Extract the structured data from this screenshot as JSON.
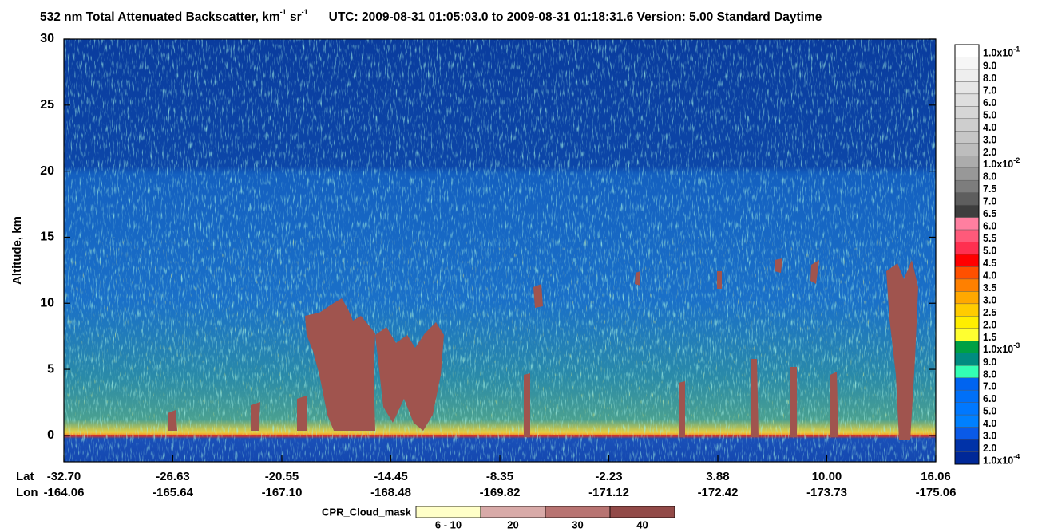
{
  "chart_data": {
    "type": "heatmap",
    "title": {
      "main": "532 nm Total Attenuated Backscatter, km",
      "exp1": "-1",
      "unit2": " sr",
      "exp2": "-1",
      "rest": "UTC:  2009-08-31 01:05:03.0  to  2009-08-31 01:18:31.6    Version: 5.00  Standard  Daytime"
    },
    "y_label": "Altitude, km",
    "ylim": [
      -2,
      30
    ],
    "yticks": [
      0,
      5,
      10,
      15,
      20,
      25,
      30
    ],
    "xtick_rows": [
      {
        "name": "Lat",
        "labels": [
          "-32.70",
          "-26.63",
          "-20.55",
          "-14.45",
          "-8.35",
          "-2.23",
          "3.88",
          "10.00",
          "16.06"
        ]
      },
      {
        "name": "Lon",
        "labels": [
          "-164.06",
          "-165.64",
          "-167.10",
          "-168.48",
          "-169.82",
          "-171.12",
          "-172.42",
          "-173.73",
          "-175.06"
        ]
      }
    ],
    "colorbar": {
      "labels": [
        {
          "text": "1.0x10",
          "sup": "-1"
        },
        "9.0",
        "8.0",
        "7.0",
        "6.0",
        "5.0",
        "4.0",
        "3.0",
        "2.0",
        {
          "text": "1.0x10",
          "sup": "-2"
        },
        "8.0",
        "7.5",
        "7.0",
        "6.5",
        "6.0",
        "5.5",
        "5.0",
        "4.5",
        "4.0",
        "3.5",
        "3.0",
        "2.5",
        "2.0",
        "1.5",
        {
          "text": "1.0x10",
          "sup": "-3"
        },
        "9.0",
        "8.0",
        "7.0",
        "6.0",
        "5.0",
        "4.0",
        "3.0",
        "2.0",
        {
          "text": "1.0x10",
          "sup": "-4"
        }
      ],
      "colors": [
        "#ffffff",
        "#f6f6f6",
        "#eeeeee",
        "#e6e6e6",
        "#dedede",
        "#d6d6d6",
        "#cecece",
        "#c6c6c6",
        "#bdbdbd",
        "#acacac",
        "#989898",
        "#7d7d7d",
        "#5e5e5e",
        "#3e3e3e",
        "#ff7fa0",
        "#ff5a7a",
        "#ff3050",
        "#ff0000",
        "#ff5000",
        "#ff8000",
        "#ffa800",
        "#ffcc00",
        "#ffee00",
        "#ffff30",
        "#00a044",
        "#008c80",
        "#33ffb4",
        "#0064f0",
        "#0070f8",
        "#0078ff",
        "#0080ff",
        "#0a5ae8",
        "#0032a8",
        "#002898"
      ]
    },
    "cloud_mask": {
      "label": "CPR_Cloud_mask",
      "labels": [
        "6 - 10",
        "20",
        "30",
        "40"
      ],
      "colors": [
        "#ffffc8",
        "#d8aaa8",
        "#b87472",
        "#924a48"
      ]
    }
  }
}
